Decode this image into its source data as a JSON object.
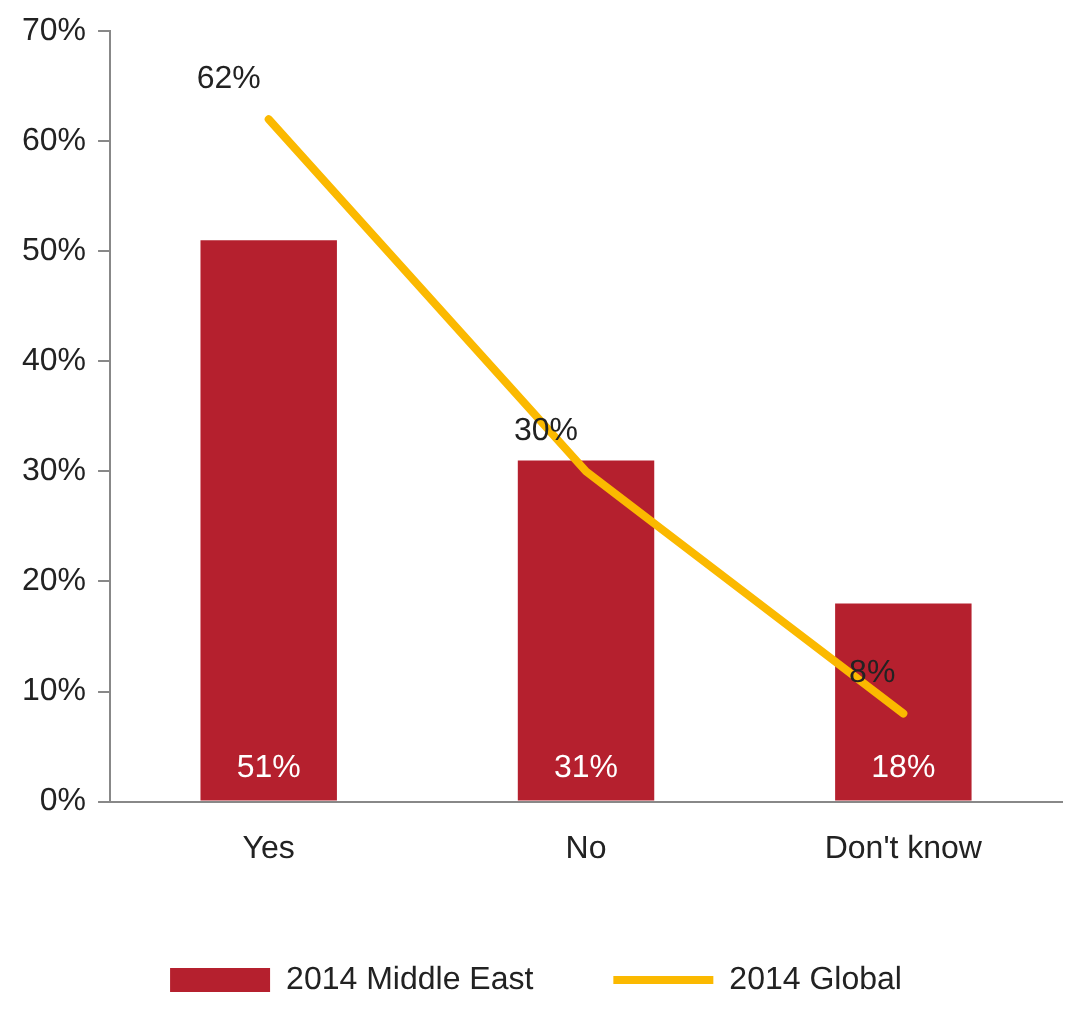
{
  "chart_data": {
    "type": "bar",
    "categories": [
      "Yes",
      "No",
      "Don't know"
    ],
    "series": [
      {
        "name": "2014 Middle East",
        "color": "#b5202e",
        "values": [
          51,
          31,
          18
        ],
        "value_labels": [
          "51%",
          "31%",
          "18%"
        ]
      },
      {
        "name": "2014 Global",
        "type": "line",
        "color": "#fbb900",
        "values": [
          62,
          30,
          8
        ],
        "value_labels": [
          "62%",
          "30%",
          "8%"
        ],
        "marker": "none"
      }
    ],
    "ylim": [
      0,
      70
    ],
    "yticks": [
      {
        "value": 0,
        "label": "0%"
      },
      {
        "value": 10,
        "label": "10%"
      },
      {
        "value": 20,
        "label": "20%"
      },
      {
        "value": 30,
        "label": "30%"
      },
      {
        "value": 40,
        "label": "40%"
      },
      {
        "value": 50,
        "label": "50%"
      },
      {
        "value": 60,
        "label": "60%"
      },
      {
        "value": 70,
        "label": "70%"
      }
    ],
    "grid": false,
    "legend": "bottom"
  }
}
